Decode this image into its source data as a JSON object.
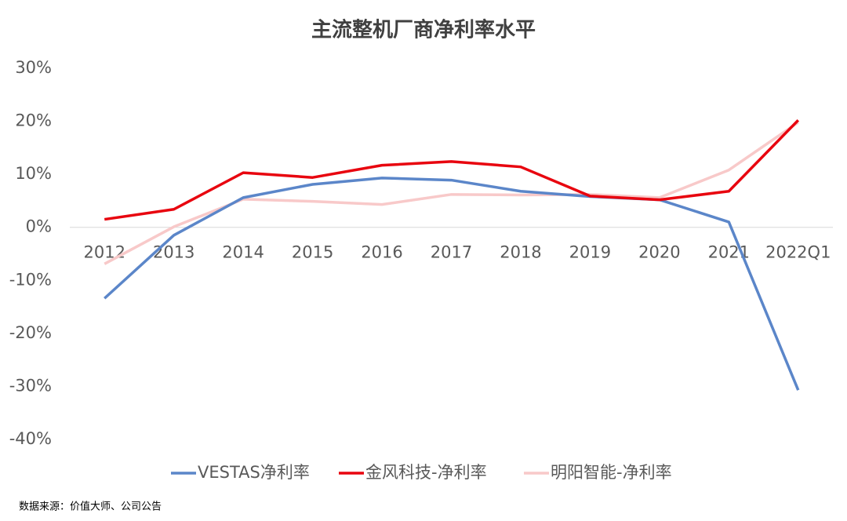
{
  "chart_data": {
    "type": "line",
    "title": "主流整机厂商净利率水平",
    "categories": [
      "2012",
      "2013",
      "2014",
      "2015",
      "2016",
      "2017",
      "2018",
      "2019",
      "2020",
      "2021",
      "2022Q1"
    ],
    "series": [
      {
        "name": "VESTAS净利率",
        "color": "#5b86c9",
        "values": [
          -13.4,
          -1.5,
          5.6,
          8.1,
          9.3,
          8.9,
          6.8,
          5.8,
          5.2,
          1.0,
          -30.7
        ]
      },
      {
        "name": "金风科技-净利率",
        "color": "#e8050f",
        "values": [
          1.5,
          3.4,
          10.3,
          9.4,
          11.7,
          12.4,
          11.4,
          5.9,
          5.2,
          6.8,
          20.2
        ]
      },
      {
        "name": "明阳智能-净利率",
        "color": "#f8c9c9",
        "values": [
          -6.9,
          0.1,
          5.3,
          4.9,
          4.3,
          6.2,
          6.1,
          6.2,
          5.6,
          10.8,
          19.8
        ]
      }
    ],
    "ylim": [
      -40,
      30
    ],
    "yticks": [
      {
        "value": -40,
        "label": "-40%"
      },
      {
        "value": -30,
        "label": "-30%"
      },
      {
        "value": -20,
        "label": "-20%"
      },
      {
        "value": -10,
        "label": "-10%"
      },
      {
        "value": 0,
        "label": "0%"
      },
      {
        "value": 10,
        "label": "10%"
      },
      {
        "value": 20,
        "label": "20%"
      },
      {
        "value": 30,
        "label": "30%"
      }
    ],
    "grid": false,
    "legend": "bottom",
    "source": "数据来源：价值大师、公司公告"
  }
}
